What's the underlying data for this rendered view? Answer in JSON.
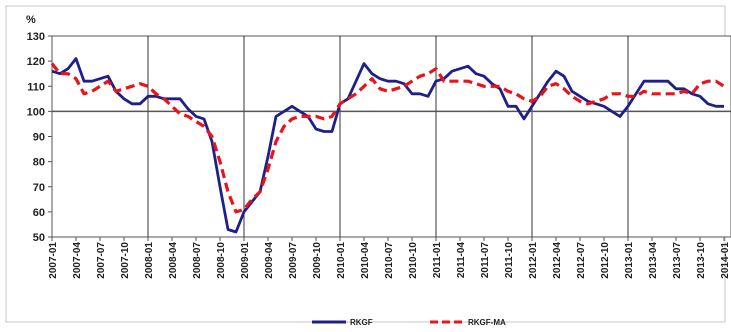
{
  "chart_data": {
    "type": "line",
    "y_unit_label": "%",
    "ylim": [
      50,
      130
    ],
    "yticks": [
      50,
      60,
      70,
      80,
      90,
      100,
      110,
      120,
      130
    ],
    "reference_line": 100,
    "grid": {
      "vertical_at_year_start": true,
      "horizontal": false
    },
    "x_tick_labels": [
      "2007-01",
      "2007-04",
      "2007-07",
      "2007-10",
      "2008-01",
      "2008-04",
      "2008-07",
      "2008-10",
      "2009-01",
      "2009-04",
      "2009-07",
      "2009-10",
      "2010-01",
      "2010-04",
      "2010-07",
      "2010-10",
      "2011-01",
      "2011-04",
      "2011-07",
      "2011-10",
      "2012-01",
      "2012-04",
      "2012-07",
      "2012-10",
      "2013-01",
      "2013-04",
      "2013-07",
      "2013-10",
      "2014-01"
    ],
    "x_start": "2007-01",
    "x_end": "2014-01",
    "legend_placement": "bottom",
    "colors": {
      "RKGF": "#1f1f8a",
      "RKGF-MA": "#e8141a"
    },
    "series": [
      {
        "name": "RKGF",
        "style": "solid",
        "values": [
          116,
          115,
          117,
          121,
          112,
          112,
          113,
          114,
          108,
          105,
          103,
          103,
          106,
          106,
          105,
          105,
          105,
          101,
          98,
          97,
          88,
          70,
          53,
          52,
          60,
          64,
          68,
          82,
          98,
          100,
          102,
          100,
          98,
          93,
          92,
          92,
          103,
          105,
          112,
          119,
          115,
          113,
          112,
          112,
          111,
          107,
          107,
          106,
          112,
          113,
          116,
          117,
          118,
          115,
          114,
          111,
          109,
          102,
          102,
          97,
          102,
          107,
          112,
          116,
          114,
          108,
          106,
          104,
          103,
          102,
          100,
          98,
          102,
          107,
          112,
          112,
          112,
          112,
          109,
          109,
          107,
          106,
          103,
          102,
          102
        ]
      },
      {
        "name": "RKGF-MA",
        "style": "dashed",
        "values": [
          119,
          115,
          115,
          113,
          107,
          108,
          110,
          112,
          108,
          109,
          110,
          111,
          110,
          107,
          105,
          102,
          99,
          98,
          96,
          94,
          90,
          80,
          68,
          60,
          61,
          65,
          68,
          77,
          88,
          94,
          97,
          98,
          98,
          98,
          97,
          98,
          103,
          105,
          107,
          110,
          113,
          109,
          108,
          109,
          110,
          112,
          114,
          115,
          117,
          112,
          112,
          112,
          112,
          111,
          110,
          110,
          110,
          108,
          107,
          105,
          104,
          106,
          110,
          111,
          109,
          106,
          104,
          103,
          104,
          105,
          107,
          107,
          106,
          106,
          108,
          107,
          107,
          107,
          107,
          108,
          107,
          111,
          112,
          112,
          110
        ]
      }
    ]
  }
}
